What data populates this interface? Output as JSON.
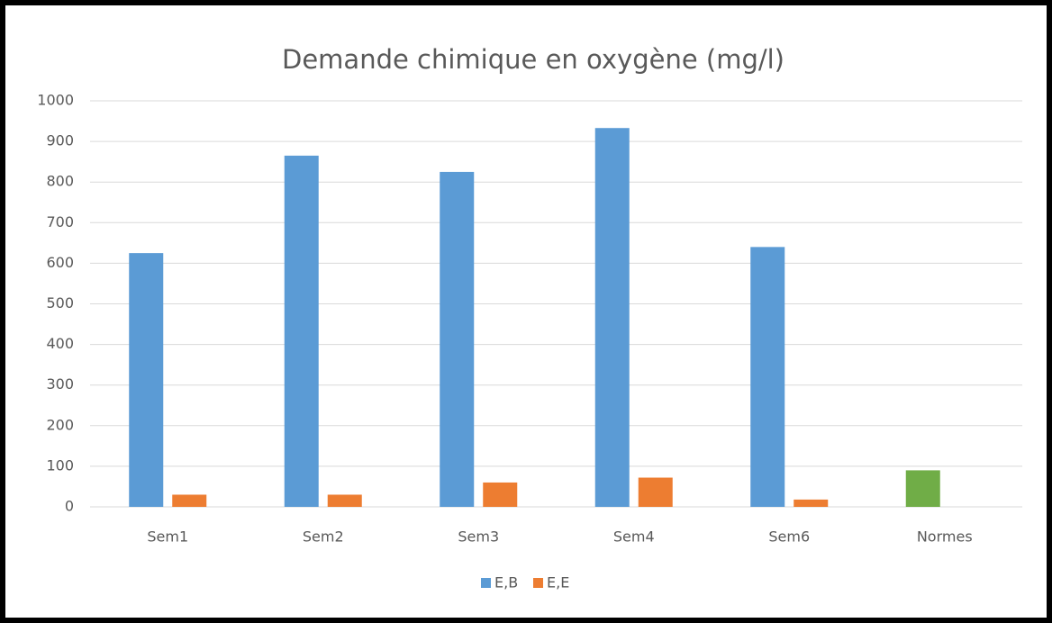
{
  "chart_data": {
    "type": "bar",
    "title": "Demande chimique en oxygène (mg/l)",
    "categories": [
      "Sem1",
      "Sem2",
      "Sem3",
      "Sem4",
      "Sem6",
      "Normes"
    ],
    "series": [
      {
        "name": "E,B",
        "color": "#5b9bd5",
        "colors": [
          "#5b9bd5",
          "#5b9bd5",
          "#5b9bd5",
          "#5b9bd5",
          "#5b9bd5",
          "#70ad47"
        ],
        "values": [
          625,
          865,
          825,
          933,
          640,
          90
        ]
      },
      {
        "name": "E,E",
        "color": "#ed7d31",
        "values": [
          30,
          30,
          60,
          72,
          18,
          null
        ]
      }
    ],
    "ylim": [
      0,
      1000
    ],
    "yticks": [
      0,
      100,
      200,
      300,
      400,
      500,
      600,
      700,
      800,
      900,
      1000
    ],
    "grid": true,
    "legend": "bottom"
  }
}
